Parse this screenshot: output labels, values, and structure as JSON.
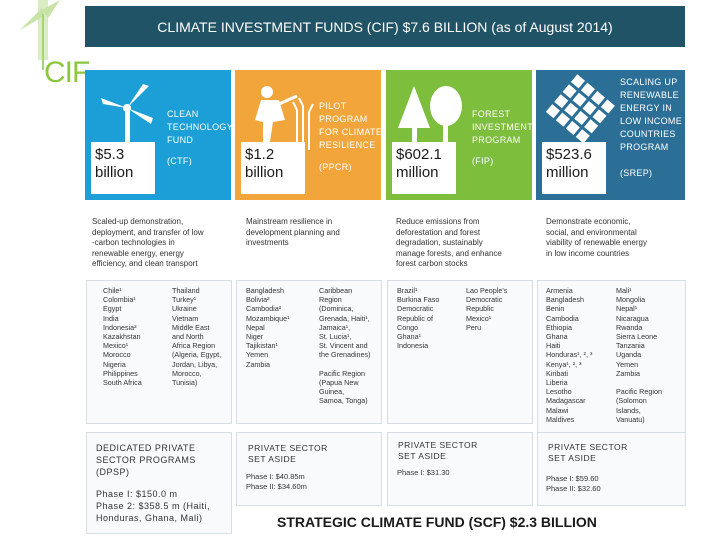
{
  "header": {
    "title": "CLIMATE INVESTMENT FUNDS (CIF) $7.6 BILLION (as of August 2014)"
  },
  "logo": {
    "text": "CIF"
  },
  "funds": [
    {
      "name": "CLEAN\nTECHNOLOGY\nFUND",
      "abbr": "(CTF)",
      "amount": "$5.3\nbillion",
      "color": "#1b9fd6",
      "description": "Scaled-up demonstration,\ndeployment, and transfer of low\n-carbon technologies in\nrenewable energy, energy\nefficiency, and clean transport",
      "countries_col1": "Chile¹\nColombia¹\nEgypt\nIndia\nIndonesia²\nKazakhstan\nMexico¹\nMorocco\nNigeria\nPhilippines\nSouth Africa",
      "countries_col2": "Thailand\nTurkey¹\nUkraine\nVietnam\nMiddle East\nand North\nAfrica Region\n(Algeria, Egypt,\nJordan, Libya,\nMorocco,\nTunisia)"
    },
    {
      "name": "PILOT\nPROGRAM\nFOR CLIMATE\nRESILIENCE",
      "abbr": "(PPCR)",
      "amount": "$1.2\nbillion",
      "color": "#f2a53a",
      "description": "Mainstream resilience in\ndevelopment planning and\ninvestments",
      "countries_col1": "Bangladesh\nBolivia²\nCambodia²\nMozambique¹\nNepal\nNiger\nTajikistan¹\nYemen\nZambia",
      "countries_col2": "Caribbean\nRegion\n(Dominica,\nGrenada, Haiti¹,\nJamaica¹,\nSt. Lucia¹,\nSt. Vincent and\nthe Grenadines)\n\nPacific Region\n(Papua New\nGuinea,\nSamoa, Tonga)"
    },
    {
      "name": "FOREST\nINVESTMENT\nPROGRAM",
      "abbr": "(FIP)",
      "amount": "$602.1\nmillion",
      "color": "#7dbe3c",
      "description": "Reduce emissions from\ndeforestation and forest\ndegradation, sustainably\nmanage forests, and enhance\nforest carbon stocks",
      "countries_col1": "Brazil¹\nBurkina Faso\nDemocratic\nRepublic of\nCongo\nGhana¹\nIndonesia",
      "countries_col2": "Lao People's\nDemocratic\nRepublic\nMexico¹\nPeru"
    },
    {
      "name": "SCALING UP\nRENEWABLE\nENERGY IN\nLOW INCOME\nCOUNTRIES\nPROGRAM",
      "abbr": "(SREP)",
      "amount": "$523.6\nmillion",
      "color": "#2b6f97",
      "description": "Demonstrate economic,\nsocial, and environmental\nviability of renewable energy\nin low income countries",
      "countries_col1": "Armenia\nBangladesh\nBenin\nCambodia\nEthiopia\nGhana\nHaiti\nHonduras¹, ², ³\nKenya¹, ², ³\nKiribati\nLiberia\nLesotho\nMadagascar\nMalawi\nMaldives",
      "countries_col2": "Mali¹\nMongolia\nNepal¹\nNicaragua\nRwanda\nSierra Leone\nTanzania\nUganda\nYemen\nZambia\n\nPacific Region\n(Solomon\nIslands,\nVanuatu)"
    }
  ],
  "dpsp": {
    "title": "DEDICATED PRIVATE\nSECTOR PROGRAMS\n(DPSP)",
    "text": "Phase I: $150.0 m\nPhase 2: $358.5 m (Haiti,\nHonduras, Ghana, Mali)"
  },
  "set_asides": [
    {
      "title": "PRIVATE SECTOR\nSET ASIDE",
      "text": "Phase I: $40.85m\nPhase II: $34.60m"
    },
    {
      "title": "PRIVATE SECTOR\nSET ASIDE",
      "text": "Phase I: $31.30"
    },
    {
      "title": "PRIVATE SECTOR\nSET ASIDE",
      "text": "Phase I: $59.60\nPhase II: $32.60"
    }
  ],
  "scf_title": "STRATEGIC CLIMATE FUND (SCF) $2.3 BILLION"
}
